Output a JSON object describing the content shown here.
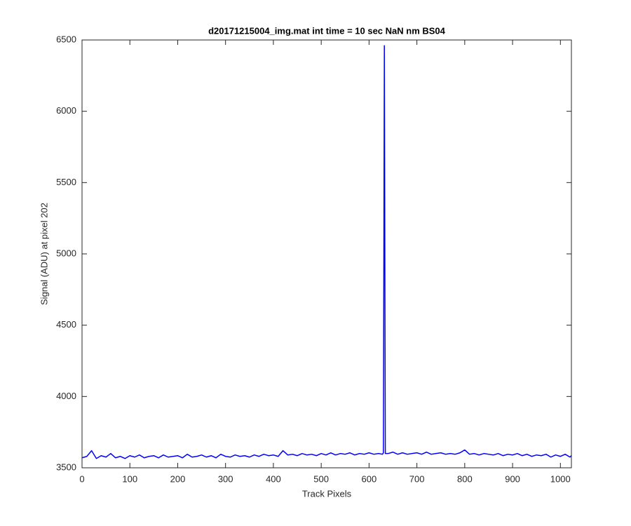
{
  "chart_data": {
    "type": "line",
    "title": "d20171215004_img.mat int time = 10 sec  NaN nm BS04",
    "x_label": "Track Pixels",
    "y_label": "Signal (ADU) at pixel 202",
    "xlim": [
      0,
      1023
    ],
    "ylim": [
      3500,
      6500
    ],
    "xticks": [
      0,
      100,
      200,
      300,
      400,
      500,
      600,
      700,
      800,
      900,
      1000
    ],
    "yticks": [
      3500,
      4000,
      4500,
      5000,
      5500,
      6000,
      6500
    ],
    "grid": false,
    "series": [
      {
        "color": "#0000ff",
        "x": [
          0,
          10,
          20,
          30,
          40,
          50,
          60,
          70,
          80,
          90,
          100,
          110,
          120,
          130,
          140,
          150,
          160,
          170,
          180,
          190,
          200,
          210,
          220,
          230,
          240,
          250,
          260,
          270,
          280,
          290,
          300,
          310,
          320,
          330,
          340,
          350,
          360,
          370,
          380,
          390,
          400,
          410,
          420,
          430,
          440,
          450,
          460,
          470,
          480,
          490,
          500,
          510,
          520,
          530,
          540,
          550,
          560,
          570,
          580,
          590,
          600,
          610,
          620,
          628,
          630,
          632,
          634,
          640,
          650,
          660,
          670,
          680,
          690,
          700,
          710,
          720,
          730,
          740,
          750,
          760,
          770,
          780,
          790,
          800,
          810,
          820,
          830,
          840,
          850,
          860,
          870,
          880,
          890,
          900,
          910,
          920,
          930,
          940,
          950,
          960,
          970,
          980,
          990,
          1000,
          1010,
          1020,
          1023
        ],
        "values": [
          3570,
          3580,
          3620,
          3565,
          3585,
          3575,
          3600,
          3570,
          3580,
          3565,
          3585,
          3575,
          3590,
          3570,
          3580,
          3585,
          3570,
          3590,
          3575,
          3580,
          3585,
          3570,
          3595,
          3575,
          3580,
          3590,
          3575,
          3585,
          3570,
          3595,
          3580,
          3575,
          3590,
          3580,
          3585,
          3575,
          3590,
          3580,
          3595,
          3585,
          3590,
          3580,
          3620,
          3590,
          3595,
          3585,
          3600,
          3590,
          3595,
          3585,
          3600,
          3590,
          3605,
          3590,
          3600,
          3595,
          3605,
          3590,
          3600,
          3595,
          3605,
          3595,
          3600,
          3595,
          3605,
          6460,
          3600,
          3600,
          3610,
          3595,
          3605,
          3595,
          3600,
          3605,
          3595,
          3610,
          3595,
          3600,
          3605,
          3595,
          3600,
          3595,
          3605,
          3625,
          3595,
          3600,
          3590,
          3600,
          3595,
          3590,
          3600,
          3585,
          3595,
          3590,
          3600,
          3585,
          3595,
          3580,
          3590,
          3585,
          3595,
          3575,
          3590,
          3580,
          3595,
          3575,
          3585
        ]
      }
    ]
  }
}
